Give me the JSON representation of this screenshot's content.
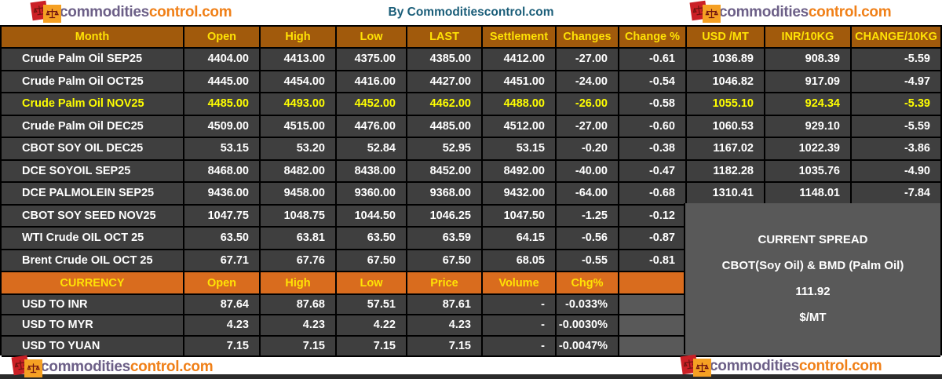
{
  "brand": {
    "name_part1": "commodities",
    "name_part2": "control.com"
  },
  "title": "By Commoditiescontrol.com",
  "main_table": {
    "headers": [
      "Month",
      "Open",
      "High",
      "Low",
      "LAST",
      "Settlement",
      "Changes",
      "Change %",
      "USD /MT",
      "INR/10KG",
      "CHANGE/10KG"
    ],
    "rows": [
      {
        "highlight": false,
        "cells": [
          "Crude Palm Oil SEP25",
          "4404.00",
          "4413.00",
          "4375.00",
          "4385.00",
          "4412.00",
          "-27.00",
          "-0.61",
          "1036.89",
          "908.39",
          "-5.59"
        ]
      },
      {
        "highlight": false,
        "cells": [
          "Crude Palm Oil OCT25",
          "4445.00",
          "4454.00",
          "4416.00",
          "4427.00",
          "4451.00",
          "-24.00",
          "-0.54",
          "1046.82",
          "917.09",
          "-4.97"
        ]
      },
      {
        "highlight": true,
        "cells": [
          "Crude Palm Oil NOV25",
          "4485.00",
          "4493.00",
          "4452.00",
          "4462.00",
          "4488.00",
          "-26.00",
          "-0.58",
          "1055.10",
          "924.34",
          "-5.39"
        ]
      },
      {
        "highlight": false,
        "cells": [
          "Crude Palm Oil DEC25",
          "4509.00",
          "4515.00",
          "4476.00",
          "4485.00",
          "4512.00",
          "-27.00",
          "-0.60",
          "1060.53",
          "929.10",
          "-5.59"
        ]
      },
      {
        "highlight": false,
        "cells": [
          "CBOT SOY OIL DEC25",
          "53.15",
          "53.20",
          "52.84",
          "52.95",
          "53.15",
          "-0.20",
          "-0.38",
          "1167.02",
          "1022.39",
          "-3.86"
        ]
      },
      {
        "highlight": false,
        "cells": [
          "DCE SOYOIL SEP25",
          "8468.00",
          "8482.00",
          "8438.00",
          "8452.00",
          "8492.00",
          "-40.00",
          "-0.47",
          "1182.28",
          "1035.76",
          "-4.90"
        ]
      },
      {
        "highlight": false,
        "cells": [
          "DCE PALMOLEIN SEP25",
          "9436.00",
          "9458.00",
          "9360.00",
          "9368.00",
          "9432.00",
          "-64.00",
          "-0.68",
          "1310.41",
          "1148.01",
          "-7.84"
        ]
      },
      {
        "highlight": false,
        "cells": [
          "CBOT SOY SEED NOV25",
          "1047.75",
          "1048.75",
          "1044.50",
          "1046.25",
          "1047.50",
          "-1.25",
          "-0.12"
        ]
      },
      {
        "highlight": false,
        "cells": [
          "WTI Crude OIL OCT 25",
          "63.50",
          "63.81",
          "63.50",
          "63.59",
          "64.15",
          "-0.56",
          "-0.87"
        ]
      },
      {
        "highlight": false,
        "cells": [
          "Brent Crude OIL OCT 25",
          "67.71",
          "67.76",
          "67.50",
          "67.50",
          "68.05",
          "-0.55",
          "-0.81"
        ]
      }
    ]
  },
  "currency_table": {
    "headers": [
      "CURRENCY",
      "Open",
      "High",
      "Low",
      "Price",
      "Volume",
      "Chg%"
    ],
    "rows": [
      {
        "cells": [
          "USD TO INR",
          "87.64",
          "87.68",
          "57.51",
          "87.61",
          "-",
          "-0.033%"
        ]
      },
      {
        "cells": [
          "USD TO MYR",
          "4.23",
          "4.23",
          "4.22",
          "4.23",
          "-",
          "-0.0030%"
        ]
      },
      {
        "cells": [
          "USD TO YUAN",
          "7.15",
          "7.15",
          "7.15",
          "7.15",
          "-",
          "-0.0047%"
        ]
      }
    ]
  },
  "spread_panel": {
    "line1": "CURRENT SPREAD",
    "line2": "CBOT(Soy Oil) & BMD (Palm Oil)",
    "line3": "111.92",
    "line4": "$/MT"
  },
  "colors": {
    "header_bg": "#A15A0C",
    "currency_bg": "#D96C1E",
    "header_yellow": "#FFE205",
    "highlight_yellow": "#FFFF00",
    "row_bg": "#3F3F3F",
    "panel_gray": "#595959",
    "title_teal": "#1B5E79",
    "brand_purple": "#6C5F87",
    "brand_orange": "#F08018",
    "logo_red": "#CB2026",
    "logo_orange_sq": "#F5A023",
    "bottom_bar": "#2B2B2B"
  }
}
